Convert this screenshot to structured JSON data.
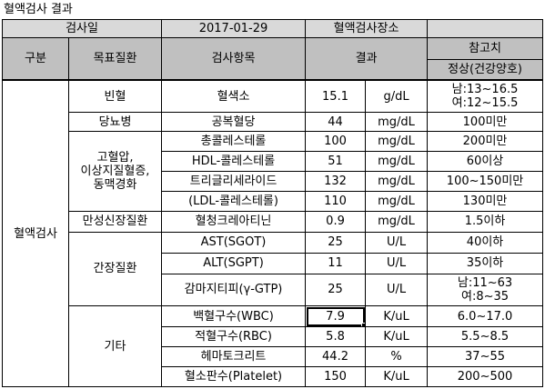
{
  "title": "혈액검사 결과",
  "header": {
    "exam_date_label": "검사일",
    "exam_date": "2017-01-29",
    "exam_place_label": "혈액검사장소",
    "exam_place": "",
    "category": "구분",
    "target_disease": "목표질환",
    "test_item": "검사항목",
    "result": "결과",
    "reference": "참고치",
    "reference_sub": "정상(건강양호)"
  },
  "group_label": "혈액검사",
  "diseases": {
    "anemia": "빈혈",
    "diabetes": "당뇨병",
    "hypertension": [
      "고혈압,",
      "이상지질혈증,",
      "동맥경화"
    ],
    "kidney": "만성신장질환",
    "liver": "간장질환",
    "other": "기타"
  },
  "rows": [
    {
      "item": "혈색소",
      "value": "15.1",
      "unit": "g/dL",
      "ref": [
        "남:13~16.5",
        "여:12~15.5"
      ]
    },
    {
      "item": "공복혈당",
      "value": "44",
      "unit": "mg/dL",
      "ref": [
        "100미만"
      ]
    },
    {
      "item": "총콜레스테롤",
      "value": "100",
      "unit": "mg/dL",
      "ref": [
        "200미만"
      ]
    },
    {
      "item": "HDL-콜레스테롤",
      "value": "51",
      "unit": "mg/dL",
      "ref": [
        "60이상"
      ]
    },
    {
      "item": "트리글리세라이드",
      "value": "132",
      "unit": "mg/dL",
      "ref": [
        "100~150미만"
      ]
    },
    {
      "item": "(LDL-콜레스테롤)",
      "value": "110",
      "unit": "mg/dL",
      "ref": [
        "130미만"
      ]
    },
    {
      "item": "혈청크레아티닌",
      "value": "0.9",
      "unit": "mg/dL",
      "ref": [
        "1.5이하"
      ]
    },
    {
      "item": "AST(SGOT)",
      "value": "25",
      "unit": "U/L",
      "ref": [
        "40이하"
      ]
    },
    {
      "item": "ALT(SGPT)",
      "value": "11",
      "unit": "U/L",
      "ref": [
        "35이하"
      ]
    },
    {
      "item": "감마지티피(γ-GTP)",
      "value": "25",
      "unit": "U/L",
      "ref": [
        "남:11~63",
        "여:8~35"
      ]
    },
    {
      "item": "백혈구수(WBC)",
      "value": "7.9",
      "unit": "K/uL",
      "ref": [
        "6.0~17.0"
      ]
    },
    {
      "item": "적혈구수(RBC)",
      "value": "5.8",
      "unit": "K/uL",
      "ref": [
        "5.5~8.5"
      ]
    },
    {
      "item": "헤마토크리트",
      "value": "44.2",
      "unit": "%",
      "ref": [
        "37~55"
      ]
    },
    {
      "item": "혈소판수(Platelet)",
      "value": "150",
      "unit": "K/uL",
      "ref": [
        "200~500"
      ]
    }
  ]
}
